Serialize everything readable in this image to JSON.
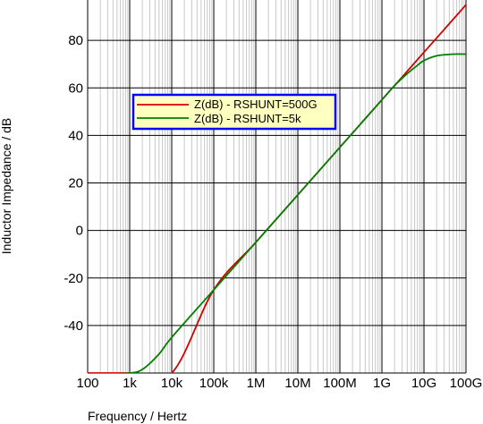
{
  "chart_data": {
    "type": "line",
    "title": "",
    "xlabel": "Frequency / Hertz",
    "ylabel": "Inductor Impedance / dB",
    "x_scale": "log",
    "xlim": [
      100,
      100000000000
    ],
    "ylim": [
      -60,
      97
    ],
    "x_ticks": [
      {
        "value": 100,
        "label": "100"
      },
      {
        "value": 1000,
        "label": "1k"
      },
      {
        "value": 10000,
        "label": "10k"
      },
      {
        "value": 100000,
        "label": "100k"
      },
      {
        "value": 1000000,
        "label": "1M"
      },
      {
        "value": 10000000,
        "label": "10M"
      },
      {
        "value": 100000000,
        "label": "100M"
      },
      {
        "value": 1000000000,
        "label": "1G"
      },
      {
        "value": 10000000000,
        "label": "10G"
      },
      {
        "value": 100000000000,
        "label": "100G"
      }
    ],
    "y_ticks": [
      {
        "value": -40,
        "label": "-40"
      },
      {
        "value": -20,
        "label": "-20"
      },
      {
        "value": 0,
        "label": "0"
      },
      {
        "value": 20,
        "label": "20"
      },
      {
        "value": 40,
        "label": "40"
      },
      {
        "value": 60,
        "label": "60"
      },
      {
        "value": 80,
        "label": "80"
      }
    ],
    "grid": true,
    "legend_position": "upper-left",
    "series": [
      {
        "name": "Z(dB) - RSHUNT=500G",
        "color": "#d40000",
        "x": [
          100,
          1000,
          10000,
          100000,
          1000000,
          10000000,
          100000000,
          1000000000,
          3000000000,
          10000000000,
          30000000000,
          100000000000
        ],
        "y": [
          -60,
          -60,
          -60,
          -25,
          -5,
          15,
          35,
          55,
          64.5,
          75,
          84.5,
          95
        ]
      },
      {
        "name": "Z(dB) - RSHUNT=5k",
        "color": "#008000",
        "x": [
          100,
          300,
          1000,
          2000,
          5000,
          10000,
          100000,
          1000000,
          10000000,
          100000000,
          1000000000,
          2000000000,
          4000000000,
          7000000000,
          10000000000,
          20000000000,
          50000000000,
          100000000000
        ],
        "y": [
          -60.5,
          -60.5,
          -60,
          -58.5,
          -52,
          -45,
          -25,
          -5,
          15,
          35,
          55,
          61,
          66,
          69.5,
          71.5,
          73.5,
          74.2,
          74.2
        ]
      }
    ]
  }
}
